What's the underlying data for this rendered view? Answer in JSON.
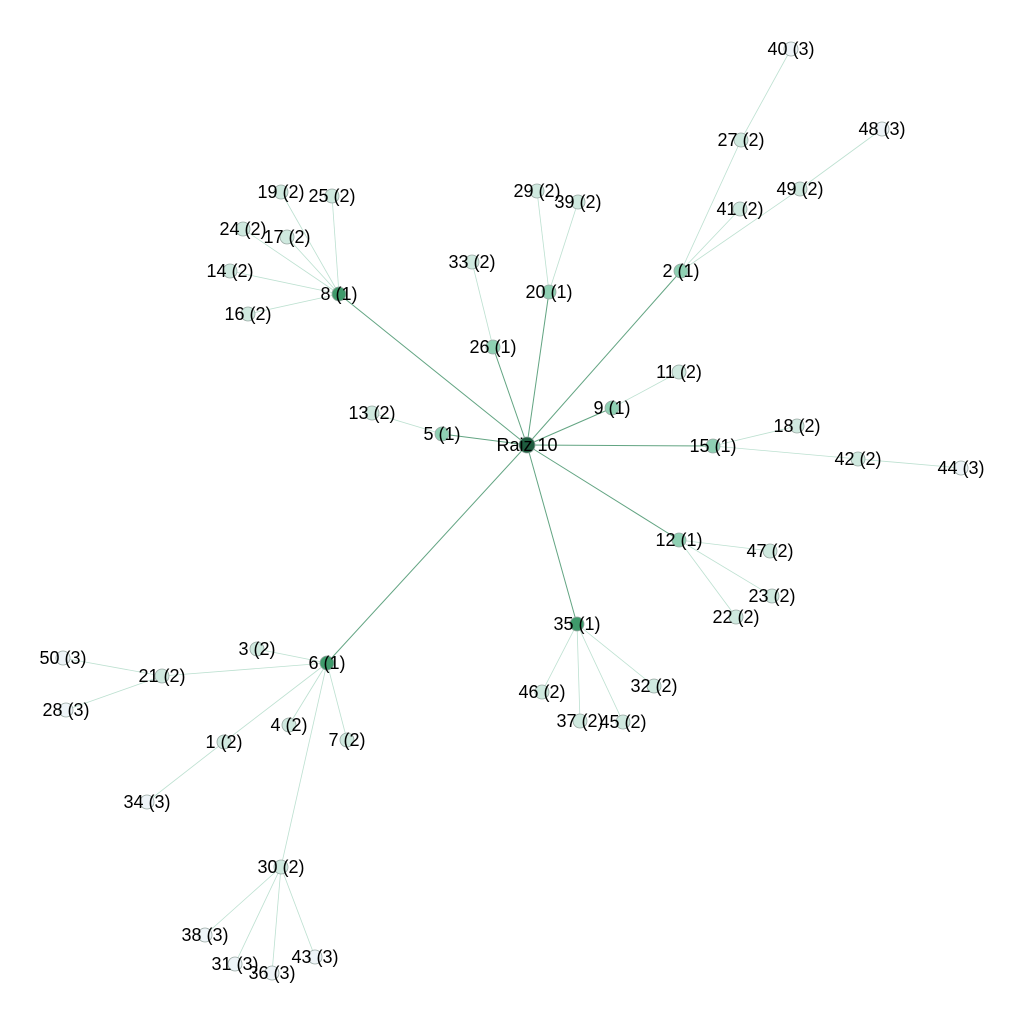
{
  "graph": {
    "root": {
      "id": "10",
      "label": "Raiz 10"
    },
    "colors": {
      "depth0": "#1f5d3f",
      "depth1_dark": "#3f9a6b",
      "depth1": "#8fd0b3",
      "depth2": "#cfe9df",
      "depth3": "#eef4f8",
      "edge_root": "#5a9f7b",
      "edge_outer": "#a6d6c0",
      "node_stroke": "#9aa9a4"
    },
    "nodes": [
      {
        "id": "10",
        "label": "Raiz 10",
        "depth": 0
      },
      {
        "id": "8",
        "label": "8 (1)",
        "depth": 1
      },
      {
        "id": "2",
        "label": "2 (1)",
        "depth": 1
      },
      {
        "id": "20",
        "label": "20 (1)",
        "depth": 1
      },
      {
        "id": "26",
        "label": "26 (1)",
        "depth": 1
      },
      {
        "id": "5",
        "label": "5 (1)",
        "depth": 1
      },
      {
        "id": "9",
        "label": "9 (1)",
        "depth": 1
      },
      {
        "id": "15",
        "label": "15 (1)",
        "depth": 1
      },
      {
        "id": "12",
        "label": "12 (1)",
        "depth": 1
      },
      {
        "id": "35",
        "label": "35 (1)",
        "depth": 1
      },
      {
        "id": "6",
        "label": "6 (1)",
        "depth": 1
      },
      {
        "id": "19",
        "label": "19 (2)",
        "depth": 2
      },
      {
        "id": "25",
        "label": "25 (2)",
        "depth": 2
      },
      {
        "id": "24",
        "label": "24 (2)",
        "depth": 2
      },
      {
        "id": "17",
        "label": "17 (2)",
        "depth": 2
      },
      {
        "id": "14",
        "label": "14 (2)",
        "depth": 2
      },
      {
        "id": "16",
        "label": "16 (2)",
        "depth": 2
      },
      {
        "id": "27",
        "label": "27 (2)",
        "depth": 2
      },
      {
        "id": "41",
        "label": "41 (2)",
        "depth": 2
      },
      {
        "id": "49",
        "label": "49 (2)",
        "depth": 2
      },
      {
        "id": "29",
        "label": "29 (2)",
        "depth": 2
      },
      {
        "id": "39",
        "label": "39 (2)",
        "depth": 2
      },
      {
        "id": "33",
        "label": "33 (2)",
        "depth": 2
      },
      {
        "id": "13",
        "label": "13 (2)",
        "depth": 2
      },
      {
        "id": "11",
        "label": "11 (2)",
        "depth": 2
      },
      {
        "id": "18",
        "label": "18 (2)",
        "depth": 2
      },
      {
        "id": "42",
        "label": "42 (2)",
        "depth": 2
      },
      {
        "id": "47",
        "label": "47 (2)",
        "depth": 2
      },
      {
        "id": "23",
        "label": "23 (2)",
        "depth": 2
      },
      {
        "id": "22",
        "label": "22 (2)",
        "depth": 2
      },
      {
        "id": "46",
        "label": "46 (2)",
        "depth": 2
      },
      {
        "id": "32",
        "label": "32 (2)",
        "depth": 2
      },
      {
        "id": "37",
        "label": "37 (2)",
        "depth": 2
      },
      {
        "id": "45",
        "label": "45 (2)",
        "depth": 2
      },
      {
        "id": "3",
        "label": "3 (2)",
        "depth": 2
      },
      {
        "id": "21",
        "label": "21 (2)",
        "depth": 2
      },
      {
        "id": "4",
        "label": "4 (2)",
        "depth": 2
      },
      {
        "id": "7",
        "label": "7 (2)",
        "depth": 2
      },
      {
        "id": "1",
        "label": "1 (2)",
        "depth": 2
      },
      {
        "id": "30",
        "label": "30 (2)",
        "depth": 2
      },
      {
        "id": "40",
        "label": "40 (3)",
        "depth": 3
      },
      {
        "id": "48",
        "label": "48 (3)",
        "depth": 3
      },
      {
        "id": "44",
        "label": "44 (3)",
        "depth": 3
      },
      {
        "id": "50",
        "label": "50 (3)",
        "depth": 3
      },
      {
        "id": "28",
        "label": "28 (3)",
        "depth": 3
      },
      {
        "id": "34",
        "label": "34 (3)",
        "depth": 3
      },
      {
        "id": "38",
        "label": "38 (3)",
        "depth": 3
      },
      {
        "id": "31",
        "label": "31 (3)",
        "depth": 3
      },
      {
        "id": "36",
        "label": "36 (3)",
        "depth": 3
      },
      {
        "id": "43",
        "label": "43 (3)",
        "depth": 3
      }
    ],
    "edges": [
      [
        "10",
        "8"
      ],
      [
        "10",
        "2"
      ],
      [
        "10",
        "20"
      ],
      [
        "10",
        "26"
      ],
      [
        "10",
        "5"
      ],
      [
        "10",
        "9"
      ],
      [
        "10",
        "15"
      ],
      [
        "10",
        "12"
      ],
      [
        "10",
        "35"
      ],
      [
        "10",
        "6"
      ],
      [
        "8",
        "19"
      ],
      [
        "8",
        "25"
      ],
      [
        "8",
        "24"
      ],
      [
        "8",
        "17"
      ],
      [
        "8",
        "14"
      ],
      [
        "8",
        "16"
      ],
      [
        "2",
        "27"
      ],
      [
        "2",
        "41"
      ],
      [
        "2",
        "49"
      ],
      [
        "27",
        "40"
      ],
      [
        "49",
        "48"
      ],
      [
        "20",
        "29"
      ],
      [
        "20",
        "39"
      ],
      [
        "26",
        "33"
      ],
      [
        "5",
        "13"
      ],
      [
        "9",
        "11"
      ],
      [
        "15",
        "18"
      ],
      [
        "15",
        "42"
      ],
      [
        "42",
        "44"
      ],
      [
        "12",
        "47"
      ],
      [
        "12",
        "23"
      ],
      [
        "12",
        "22"
      ],
      [
        "35",
        "46"
      ],
      [
        "35",
        "32"
      ],
      [
        "35",
        "37"
      ],
      [
        "35",
        "45"
      ],
      [
        "6",
        "3"
      ],
      [
        "6",
        "21"
      ],
      [
        "6",
        "4"
      ],
      [
        "6",
        "7"
      ],
      [
        "6",
        "1"
      ],
      [
        "6",
        "30"
      ],
      [
        "21",
        "50"
      ],
      [
        "21",
        "28"
      ],
      [
        "1",
        "34"
      ],
      [
        "30",
        "38"
      ],
      [
        "30",
        "31"
      ],
      [
        "30",
        "36"
      ],
      [
        "30",
        "43"
      ]
    ]
  }
}
